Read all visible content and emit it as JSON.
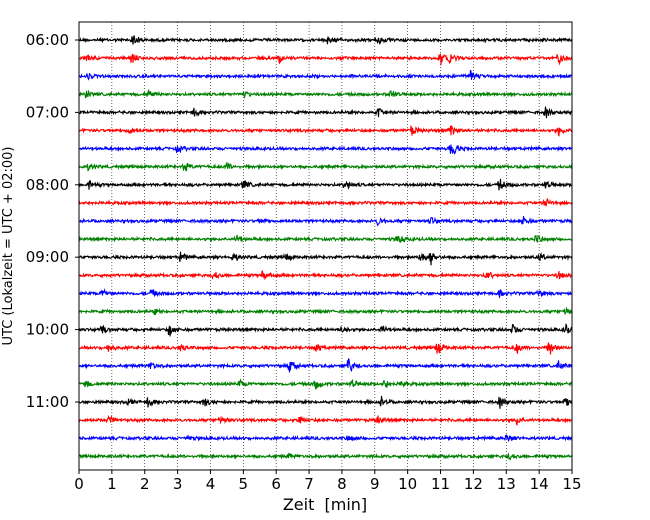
{
  "chart_data": {
    "type": "line",
    "chart_kind": "helicorder seismogram",
    "xlabel": "Zeit  [min]",
    "ylabel": "UTC (Lokalzeit = UTC + 02:00)",
    "xlim": [
      0,
      15
    ],
    "x_ticks": [
      0,
      1,
      2,
      3,
      4,
      5,
      6,
      7,
      8,
      9,
      10,
      11,
      12,
      13,
      14,
      15
    ],
    "y_tick_labels": [
      "06:00",
      "07:00",
      "08:00",
      "09:00",
      "10:00",
      "11:00"
    ],
    "y_tick_label_rows": [
      0,
      4,
      8,
      12,
      16,
      20
    ],
    "row_start_time": "06:00",
    "row_minutes": 15,
    "row_count": 24,
    "row_color_cycle": [
      "#000000",
      "#ff0000",
      "#0000ff",
      "#008000"
    ],
    "vertical_grid": "dotted",
    "events": [
      {
        "row": 0,
        "x": 1.65,
        "amp": 1.0
      },
      {
        "row": 0,
        "x": 7.55,
        "amp": 0.8
      },
      {
        "row": 0,
        "x": 9.1,
        "amp": 0.7
      },
      {
        "row": 1,
        "x": 0.2,
        "amp": 0.7
      },
      {
        "row": 1,
        "x": 1.6,
        "amp": 0.8
      },
      {
        "row": 1,
        "x": 6.1,
        "amp": 0.8
      },
      {
        "row": 1,
        "x": 11.0,
        "amp": 1.0
      },
      {
        "row": 1,
        "x": 11.3,
        "amp": 0.8
      },
      {
        "row": 1,
        "x": 14.6,
        "amp": 0.9
      },
      {
        "row": 2,
        "x": 0.25,
        "amp": 0.5
      },
      {
        "row": 2,
        "x": 11.9,
        "amp": 1.0
      },
      {
        "row": 3,
        "x": 0.2,
        "amp": 0.6
      },
      {
        "row": 3,
        "x": 2.1,
        "amp": 0.8
      },
      {
        "row": 3,
        "x": 5.0,
        "amp": 0.6
      },
      {
        "row": 3,
        "x": 9.5,
        "amp": 0.9
      },
      {
        "row": 4,
        "x": 3.5,
        "amp": 0.7
      },
      {
        "row": 4,
        "x": 9.1,
        "amp": 0.8
      },
      {
        "row": 4,
        "x": 14.2,
        "amp": 0.8
      },
      {
        "row": 5,
        "x": 1.5,
        "amp": 0.6
      },
      {
        "row": 5,
        "x": 10.1,
        "amp": 0.9
      },
      {
        "row": 5,
        "x": 11.3,
        "amp": 1.0
      },
      {
        "row": 5,
        "x": 14.6,
        "amp": 0.8
      },
      {
        "row": 6,
        "x": 3.0,
        "amp": 0.6
      },
      {
        "row": 6,
        "x": 11.3,
        "amp": 1.0
      },
      {
        "row": 6,
        "x": 11.4,
        "amp": 0.7
      },
      {
        "row": 7,
        "x": 0.3,
        "amp": 0.6
      },
      {
        "row": 7,
        "x": 3.2,
        "amp": 0.8
      },
      {
        "row": 7,
        "x": 4.5,
        "amp": 0.6
      },
      {
        "row": 8,
        "x": 0.3,
        "amp": 0.6
      },
      {
        "row": 8,
        "x": 5.0,
        "amp": 0.8
      },
      {
        "row": 8,
        "x": 8.1,
        "amp": 0.9
      },
      {
        "row": 8,
        "x": 12.8,
        "amp": 1.0
      },
      {
        "row": 8,
        "x": 14.2,
        "amp": 0.8
      },
      {
        "row": 9,
        "x": 14.2,
        "amp": 0.7
      },
      {
        "row": 10,
        "x": 5.5,
        "amp": 0.5
      },
      {
        "row": 10,
        "x": 9.1,
        "amp": 0.7
      },
      {
        "row": 10,
        "x": 10.7,
        "amp": 0.6
      },
      {
        "row": 10,
        "x": 13.5,
        "amp": 0.9
      },
      {
        "row": 11,
        "x": 4.8,
        "amp": 0.7
      },
      {
        "row": 11,
        "x": 9.7,
        "amp": 0.9
      },
      {
        "row": 11,
        "x": 13.9,
        "amp": 0.7
      },
      {
        "row": 12,
        "x": 3.1,
        "amp": 0.8
      },
      {
        "row": 12,
        "x": 4.7,
        "amp": 0.7
      },
      {
        "row": 12,
        "x": 6.3,
        "amp": 0.6
      },
      {
        "row": 12,
        "x": 10.4,
        "amp": 1.0
      },
      {
        "row": 12,
        "x": 10.7,
        "amp": 1.1
      },
      {
        "row": 12,
        "x": 14.0,
        "amp": 0.6
      },
      {
        "row": 13,
        "x": 4.1,
        "amp": 0.7
      },
      {
        "row": 13,
        "x": 5.6,
        "amp": 1.0
      },
      {
        "row": 13,
        "x": 12.4,
        "amp": 0.8
      },
      {
        "row": 13,
        "x": 14.6,
        "amp": 0.7
      },
      {
        "row": 14,
        "x": 0.7,
        "amp": 0.7
      },
      {
        "row": 14,
        "x": 2.2,
        "amp": 0.7
      },
      {
        "row": 14,
        "x": 12.8,
        "amp": 0.6
      },
      {
        "row": 14,
        "x": 14.0,
        "amp": 0.8
      },
      {
        "row": 15,
        "x": 2.3,
        "amp": 0.4
      },
      {
        "row": 15,
        "x": 14.8,
        "amp": 0.9
      },
      {
        "row": 16,
        "x": 0.7,
        "amp": 0.6
      },
      {
        "row": 16,
        "x": 2.75,
        "amp": 1.0
      },
      {
        "row": 16,
        "x": 8.0,
        "amp": 0.7
      },
      {
        "row": 16,
        "x": 9.2,
        "amp": 0.8
      },
      {
        "row": 16,
        "x": 13.2,
        "amp": 1.0
      },
      {
        "row": 16,
        "x": 14.8,
        "amp": 0.9
      },
      {
        "row": 17,
        "x": 0.9,
        "amp": 0.8
      },
      {
        "row": 17,
        "x": 3.1,
        "amp": 0.6
      },
      {
        "row": 17,
        "x": 7.2,
        "amp": 0.9
      },
      {
        "row": 17,
        "x": 10.9,
        "amp": 1.3
      },
      {
        "row": 17,
        "x": 13.3,
        "amp": 0.9
      },
      {
        "row": 17,
        "x": 14.3,
        "amp": 1.4
      },
      {
        "row": 18,
        "x": 2.2,
        "amp": 0.6
      },
      {
        "row": 18,
        "x": 6.4,
        "amp": 1.0
      },
      {
        "row": 18,
        "x": 8.2,
        "amp": 1.4
      },
      {
        "row": 18,
        "x": 14.6,
        "amp": 0.9
      },
      {
        "row": 19,
        "x": 0.2,
        "amp": 0.6
      },
      {
        "row": 19,
        "x": 4.9,
        "amp": 0.6
      },
      {
        "row": 19,
        "x": 7.2,
        "amp": 0.9
      },
      {
        "row": 19,
        "x": 8.3,
        "amp": 0.7
      },
      {
        "row": 19,
        "x": 9.3,
        "amp": 0.8
      },
      {
        "row": 19,
        "x": 9.8,
        "amp": 0.6
      },
      {
        "row": 20,
        "x": 1.5,
        "amp": 0.6
      },
      {
        "row": 20,
        "x": 2.1,
        "amp": 0.9
      },
      {
        "row": 20,
        "x": 3.8,
        "amp": 0.8
      },
      {
        "row": 20,
        "x": 9.2,
        "amp": 0.8
      },
      {
        "row": 20,
        "x": 12.8,
        "amp": 0.9
      },
      {
        "row": 20,
        "x": 14.8,
        "amp": 0.8
      },
      {
        "row": 21,
        "x": 0.9,
        "amp": 0.7
      },
      {
        "row": 21,
        "x": 4.3,
        "amp": 0.8
      },
      {
        "row": 21,
        "x": 6.7,
        "amp": 0.7
      },
      {
        "row": 21,
        "x": 9.1,
        "amp": 0.6
      },
      {
        "row": 21,
        "x": 13.3,
        "amp": 0.8
      },
      {
        "row": 22,
        "x": 3.3,
        "amp": 0.4
      },
      {
        "row": 22,
        "x": 8.2,
        "amp": 0.6
      },
      {
        "row": 22,
        "x": 13.0,
        "amp": 0.7
      },
      {
        "row": 23,
        "x": 6.4,
        "amp": 0.4
      },
      {
        "row": 23,
        "x": 13.1,
        "amp": 0.5
      }
    ]
  }
}
